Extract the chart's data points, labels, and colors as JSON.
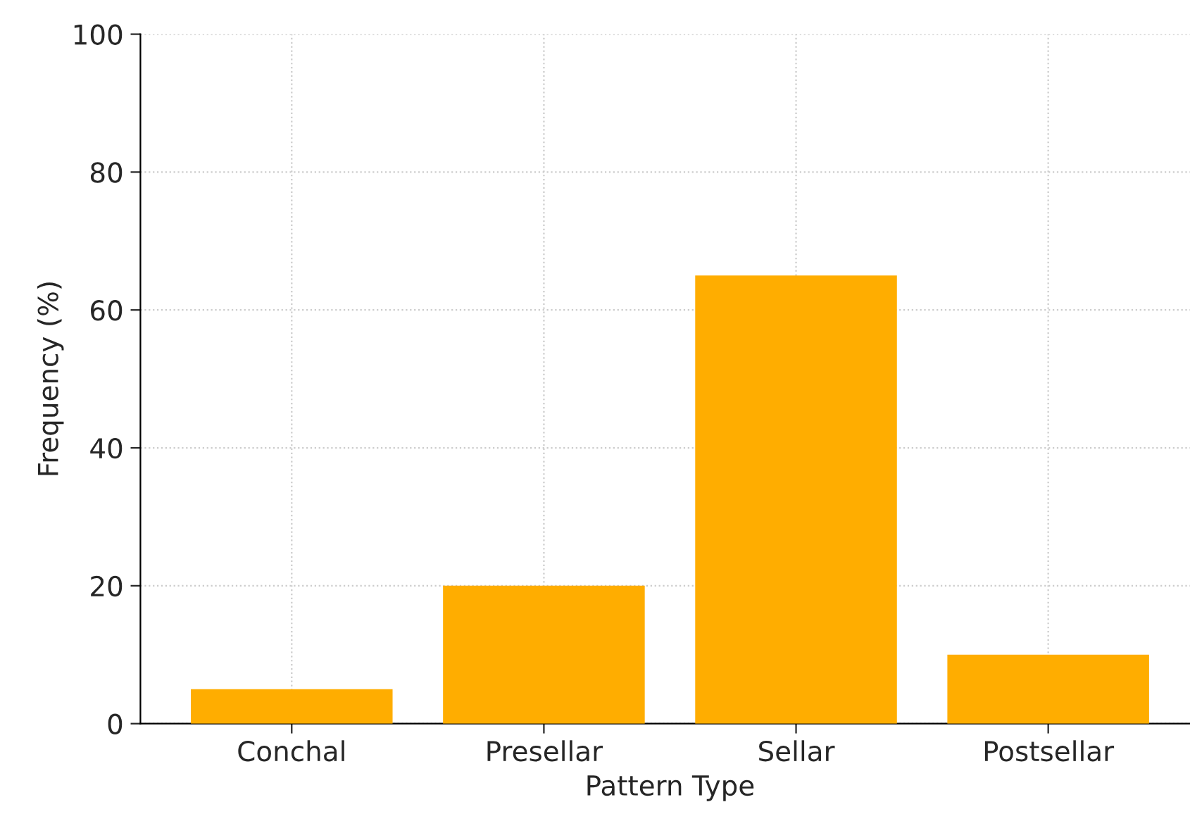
{
  "chart_data": {
    "type": "bar",
    "xlabel": "Pattern Type",
    "ylabel": "Frequency (%)",
    "categories": [
      "Conchal",
      "Presellar",
      "Sellar",
      "Postsellar"
    ],
    "values": [
      5,
      20,
      65,
      10
    ],
    "color": "#ffad00",
    "ylim": [
      0,
      100
    ],
    "yticks": [
      0,
      20,
      40,
      60,
      80,
      100
    ],
    "grid": true
  }
}
